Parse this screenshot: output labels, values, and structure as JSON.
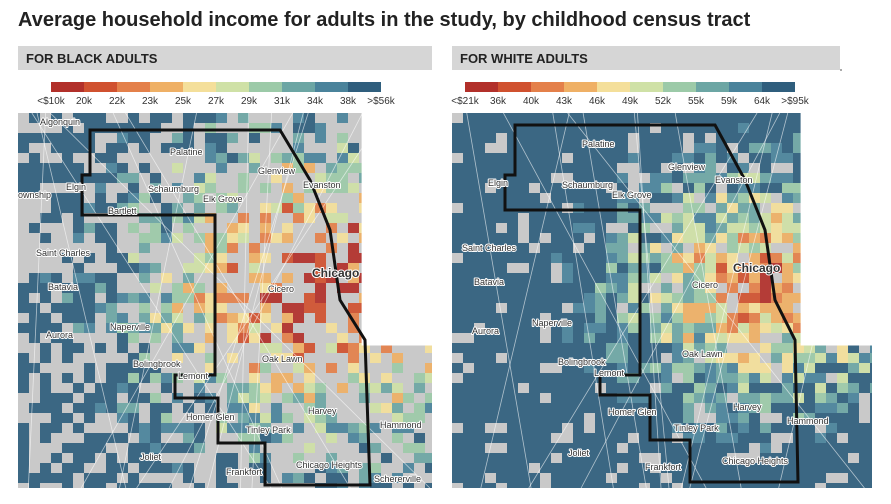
{
  "title": "Average household income for adults in the study, by childhood census tract",
  "panels": [
    {
      "header": "FOR BLACK ADULTS",
      "legend": {
        "labels": [
          "<$10k",
          "20k",
          "22k",
          "23k",
          "25k",
          "27k",
          "29k",
          "31k",
          "34k",
          "38k",
          ">$56k"
        ],
        "colors": [
          "#b2302a",
          "#d0512f",
          "#e4804a",
          "#efb065",
          "#f4df9a",
          "#cfe1a6",
          "#9ccaa8",
          "#6ca6a4",
          "#4a839b",
          "#2f5e7d"
        ]
      },
      "places": [
        "Algonquin",
        "Palatine",
        "Glenview",
        "Evanston",
        "Schaumburg",
        "Elgin",
        "Elk Grove",
        "ownship",
        "Bartlett",
        "Saint Charles",
        "Chicago",
        "Cicero",
        "Batavia",
        "Naperville",
        "Aurora",
        "Bolingbrook",
        "Oak Lawn",
        "Lemont",
        "Harvey",
        "Homer Glen",
        "Hammond",
        "Tinley Park",
        "Joliet",
        "Frankfort",
        "Chicago Heights",
        "Schererville"
      ]
    },
    {
      "header": "FOR WHITE ADULTS",
      "legend": {
        "labels": [
          "<$21k",
          "36k",
          "40k",
          "43k",
          "46k",
          "49k",
          "52k",
          "55k",
          "59k",
          "64k",
          ">$95k"
        ],
        "colors": [
          "#b2302a",
          "#d0512f",
          "#e4804a",
          "#efb065",
          "#f4df9a",
          "#cfe1a6",
          "#9ccaa8",
          "#6ca6a4",
          "#4a839b",
          "#2f5e7d"
        ]
      },
      "places": [
        "Palatine",
        "Glenview",
        "Evanston",
        "Schaumburg",
        "Elgin",
        "Elk Grove",
        "Saint Charles",
        "Chicago",
        "Cicero",
        "Batavia",
        "Naperville",
        "Aurora",
        "Bolingbrook",
        "Oak Lawn",
        "Lemont",
        "Harvey",
        "Homer Glen",
        "Hammond",
        "Tinley Park",
        "Joliet",
        "Frankfort",
        "Chicago Heights"
      ]
    }
  ]
}
